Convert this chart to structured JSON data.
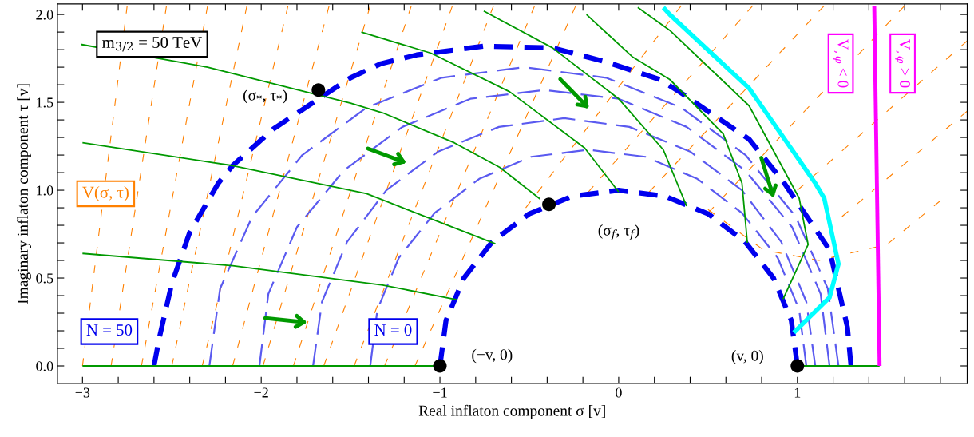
{
  "chart_data": {
    "type": "line",
    "xlabel": "Real inflaton component σ [v]",
    "ylabel": "Imaginary inflaton component τ [v]",
    "xlim": [
      -3.14,
      1.95
    ],
    "ylim": [
      -0.1,
      2.06
    ],
    "xticks": [
      {
        "value": -3,
        "label": "−3"
      },
      {
        "value": -2.8,
        "label": null
      },
      {
        "value": -2.6,
        "label": null
      },
      {
        "value": -2.4,
        "label": null
      },
      {
        "value": -2.2,
        "label": null
      },
      {
        "value": -2,
        "label": "−2"
      },
      {
        "value": -1.8,
        "label": null
      },
      {
        "value": -1.6,
        "label": null
      },
      {
        "value": -1.4,
        "label": null
      },
      {
        "value": -1.2,
        "label": null
      },
      {
        "value": -1,
        "label": "−1"
      },
      {
        "value": -0.8,
        "label": null
      },
      {
        "value": -0.6,
        "label": null
      },
      {
        "value": -0.4,
        "label": null
      },
      {
        "value": -0.2,
        "label": null
      },
      0,
      {
        "value": 0.2,
        "label": null
      },
      {
        "value": 0.4,
        "label": null
      },
      {
        "value": 0.6,
        "label": null
      },
      {
        "value": 0.8,
        "label": null
      },
      1,
      {
        "value": 1.2,
        "label": null
      },
      {
        "value": 1.4,
        "label": null
      },
      {
        "value": 1.6,
        "label": null
      },
      {
        "value": 1.8,
        "label": null
      }
    ],
    "yticks": [
      {
        "value": 0,
        "label": "0.0"
      },
      {
        "value": 0.1,
        "label": null
      },
      {
        "value": 0.2,
        "label": null
      },
      {
        "value": 0.3,
        "label": null
      },
      {
        "value": 0.4,
        "label": null
      },
      0.5,
      {
        "value": 0.6,
        "label": null
      },
      {
        "value": 0.7,
        "label": null
      },
      {
        "value": 0.8,
        "label": null
      },
      {
        "value": 0.9,
        "label": null
      },
      {
        "value": 1,
        "label": "1.0"
      },
      {
        "value": 1.1,
        "label": null
      },
      {
        "value": 1.2,
        "label": null
      },
      {
        "value": 1.3,
        "label": null
      },
      {
        "value": 1.4,
        "label": null
      },
      1.5,
      {
        "value": 1.6,
        "label": null
      },
      {
        "value": 1.7,
        "label": null
      },
      {
        "value": 1.8,
        "label": null
      },
      {
        "value": 1.9,
        "label": null
      },
      {
        "value": 2,
        "label": "2.0"
      }
    ],
    "grid": false,
    "legend": false,
    "series": [
      {
        "color": "#ff8000",
        "line_style": "dashed",
        "x": [
          -3.0,
          -2.75
        ],
        "values": [
          0,
          2.05
        ]
      },
      {
        "color": "#ff8000",
        "line_style": "dashed",
        "x": [
          -2.84,
          -2.53
        ],
        "values": [
          0,
          2.05
        ]
      },
      {
        "color": "#ff8000",
        "line_style": "dashed",
        "x": [
          -2.67,
          -2.3
        ],
        "values": [
          0,
          2.05
        ]
      },
      {
        "color": "#ff8000",
        "line_style": "dashed",
        "x": [
          -2.5,
          -2.08
        ],
        "values": [
          0,
          2.05
        ]
      },
      {
        "color": "#ff8000",
        "line_style": "dashed",
        "x": [
          -2.33,
          -1.85
        ],
        "values": [
          0,
          2.05
        ]
      },
      {
        "color": "#ff8000",
        "line_style": "dashed",
        "x": [
          -2.16,
          -1.62
        ],
        "values": [
          0,
          2.05
        ]
      },
      {
        "color": "#ff8000",
        "line_style": "dashed",
        "x": [
          -1.99,
          -1.39
        ],
        "values": [
          0,
          2.05
        ]
      },
      {
        "color": "#ff8000",
        "line_style": "dashed",
        "x": [
          -1.82,
          -1.16
        ],
        "values": [
          0,
          2.05
        ]
      },
      {
        "color": "#ff8000",
        "line_style": "dashed",
        "x": [
          -1.65,
          -0.93
        ],
        "values": [
          0,
          2.05
        ]
      },
      {
        "color": "#ff8000",
        "line_style": "dashed",
        "x": [
          -1.48,
          -0.7
        ],
        "values": [
          0,
          2.05
        ]
      },
      {
        "color": "#ff8000",
        "line_style": "dashed",
        "x": [
          -1.31,
          -0.47
        ],
        "values": [
          0,
          2.05
        ]
      },
      {
        "color": "#ff8000",
        "line_style": "dashed",
        "x": [
          -1.14,
          -0.24
        ],
        "values": [
          0,
          2.05
        ]
      },
      {
        "color": "#ff8000",
        "line_style": "dashed",
        "x": [
          -0.52,
          0.35
        ],
        "values": [
          0.9,
          2.05
        ]
      },
      {
        "color": "#ff8000",
        "line_style": "dashed",
        "x": [
          -0.17,
          0.75
        ],
        "values": [
          0.99,
          2.05
        ]
      },
      {
        "color": "#ff8000",
        "line_style": "dashed",
        "x": [
          0.17,
          1.15
        ],
        "values": [
          0.99,
          2.05
        ]
      },
      {
        "color": "#ff8000",
        "line_style": "dashed",
        "x": [
          0.5,
          1.6
        ],
        "values": [
          0.87,
          2.05
        ]
      },
      {
        "color": "#ff8000",
        "line_style": "dashed",
        "x": [
          1.0,
          1.95
        ],
        "values": [
          1.0,
          1.85
        ]
      },
      {
        "color": "#ff8000",
        "line_style": "dashed",
        "x": [
          1.25,
          1.95
        ],
        "values": [
          0.85,
          1.45
        ]
      },
      {
        "color": "#ff8000",
        "line_style": "dashed",
        "x": [
          0.5,
          0.81,
          1.12,
          1.5,
          1.8
        ],
        "values": [
          0.89,
          0.66,
          0.6,
          0.69,
          0.94
        ]
      },
      {
        "color": "#5a5af0",
        "line_style": "dashed",
        "x": [
          1.23,
          1.17,
          0.99,
          0.71,
          0.35,
          -0.07,
          -0.53,
          -0.99,
          -1.41,
          -1.77,
          -2.05,
          -2.23,
          -2.29
        ],
        "values": [
          0,
          0.44,
          0.85,
          1.2,
          1.47,
          1.64,
          1.7,
          1.64,
          1.47,
          1.2,
          0.85,
          0.44,
          0
        ]
      },
      {
        "color": "#5a5af0",
        "line_style": "dashed",
        "x": [
          1.18,
          1.13,
          0.97,
          0.71,
          0.38,
          0.0,
          -0.415,
          -0.83,
          -1.21,
          -1.54,
          -1.8,
          -1.96,
          -2.01
        ],
        "values": [
          0,
          0.41,
          0.79,
          1.11,
          1.36,
          1.52,
          1.57,
          1.52,
          1.36,
          1.11,
          0.79,
          0.41,
          0
        ]
      },
      {
        "color": "#5a5af0",
        "line_style": "dashed",
        "x": [
          1.1,
          1.05,
          0.91,
          0.69,
          0.4,
          0.06,
          -0.305,
          -0.67,
          -1.01,
          -1.3,
          -1.52,
          -1.66,
          -1.71
        ],
        "values": [
          0,
          0.365,
          0.705,
          1.0,
          1.22,
          1.36,
          1.41,
          1.36,
          1.22,
          1.0,
          0.705,
          0.365,
          0
        ]
      },
      {
        "color": "#5a5af0",
        "line_style": "dashed",
        "x": [
          1.05,
          1.01,
          0.89,
          0.69,
          0.44,
          0.15,
          -0.17,
          -0.49,
          -0.78,
          -1.03,
          -1.23,
          -1.35,
          -1.39
        ],
        "values": [
          0,
          0.32,
          0.615,
          0.87,
          1.065,
          1.19,
          1.23,
          1.19,
          1.065,
          0.87,
          0.615,
          0.32,
          0
        ]
      },
      {
        "color": "#0000ee",
        "line_style": "dashed",
        "x": [
          -2.6,
          -2.57,
          -2.5,
          -2.4,
          -2.24,
          -2.16,
          -1.93,
          -1.5,
          -1.33,
          -1.13,
          -0.755,
          -0.37,
          -0.07,
          0.23,
          0.34,
          0.73,
          0.92,
          1.18,
          1.28,
          1.3
        ],
        "values": [
          0,
          0.16,
          0.47,
          0.76,
          1.04,
          1.14,
          1.35,
          1.64,
          1.72,
          1.77,
          1.82,
          1.81,
          1.73,
          1.63,
          1.56,
          1.29,
          1.05,
          0.66,
          0.22,
          0
        ]
      },
      {
        "color": "#0000ee",
        "line_style": "dashed",
        "x": [
          -1,
          -0.966,
          -0.866,
          -0.707,
          -0.5,
          -0.259,
          0,
          0.259,
          0.5,
          0.707,
          0.866,
          0.966,
          1
        ],
        "values": [
          0,
          0.259,
          0.5,
          0.707,
          0.866,
          0.966,
          1,
          0.966,
          0.866,
          0.707,
          0.5,
          0.259,
          0
        ]
      },
      {
        "color": "#009900",
        "line_style": "solid",
        "x": [
          -3.0,
          -1.0
        ],
        "values": [
          0,
          0
        ]
      },
      {
        "color": "#009900",
        "line_style": "solid",
        "x": [
          1.0,
          1.46
        ],
        "values": [
          0,
          0
        ]
      },
      {
        "color": "#009900",
        "line_style": "solid",
        "x": [
          -3.0,
          -2.16,
          -1.32,
          -0.906
        ],
        "values": [
          0.64,
          0.57,
          0.46,
          0.377
        ]
      },
      {
        "color": "#009900",
        "line_style": "solid",
        "x": [
          -3.0,
          -2.16,
          -1.41,
          -0.69
        ],
        "values": [
          1.27,
          1.14,
          0.98,
          0.695
        ]
      },
      {
        "color": "#009900",
        "line_style": "solid",
        "x": [
          -3.01,
          -2.3,
          -1.5,
          -1.32,
          -0.92,
          -0.665,
          -0.44
        ],
        "values": [
          1.83,
          1.7,
          1.495,
          1.44,
          1.27,
          1.13,
          0.95
        ]
      },
      {
        "color": "#009900",
        "line_style": "solid",
        "x": [
          -1.44,
          -1.05,
          -0.61,
          -0.19,
          0.0
        ],
        "values": [
          1.9,
          1.78,
          1.56,
          1.24,
          0.99
        ]
      },
      {
        "color": "#009900",
        "line_style": "solid",
        "x": [
          -0.755,
          -0.37,
          0.0,
          0.25,
          0.38
        ],
        "values": [
          2.02,
          1.81,
          1.52,
          1.23,
          0.91
        ]
      },
      {
        "color": "#009900",
        "line_style": "solid",
        "x": [
          -0.18,
          0.076,
          0.286,
          0.585,
          0.69,
          0.72
        ],
        "values": [
          2.0,
          1.76,
          1.63,
          1.32,
          1.04,
          0.7
        ]
      },
      {
        "color": "#009900",
        "line_style": "solid",
        "x": [
          0.107,
          0.286,
          0.73,
          1.01,
          1.06,
          0.92
        ],
        "values": [
          2.04,
          1.91,
          1.48,
          0.955,
          0.69,
          0.38
        ]
      },
      {
        "color": "#00ffff",
        "line_style": "solid",
        "x": [
          0.25,
          0.286,
          0.73,
          1.1,
          1.15,
          1.23,
          1.18,
          0.98
        ],
        "values": [
          2.04,
          2.0,
          1.58,
          1.04,
          0.955,
          0.58,
          0.39,
          0.19
        ]
      },
      {
        "color": "#ff00ff",
        "line_style": "solid",
        "x": [
          1.46,
          1.43
        ],
        "values": [
          0,
          2.05
        ]
      },
      {
        "type": "scatter",
        "color": "#000000",
        "marker": "circle",
        "x": [
          -1.68,
          -0.39,
          -1,
          1
        ],
        "values": [
          1.57,
          0.92,
          0,
          0
        ]
      }
    ],
    "annotations": [
      "m$_{3/2}$ = 50 TeV",
      "V(σ, τ)",
      "N = 50",
      "N = 0",
      "V$_{,φ}$ < 0",
      "V$_{,φ}$ > 0",
      {
        "text": "(σ$_{*}$, τ$_{*}$)",
        "x": -1.68,
        "y": 1.57
      },
      "(σ$_{f}$, τ$_{f}$)",
      {
        "text": "(−v, 0)",
        "x": -1,
        "y": 0
      },
      {
        "text": "(v, 0)",
        "x": 1,
        "y": 0
      }
    ]
  }
}
